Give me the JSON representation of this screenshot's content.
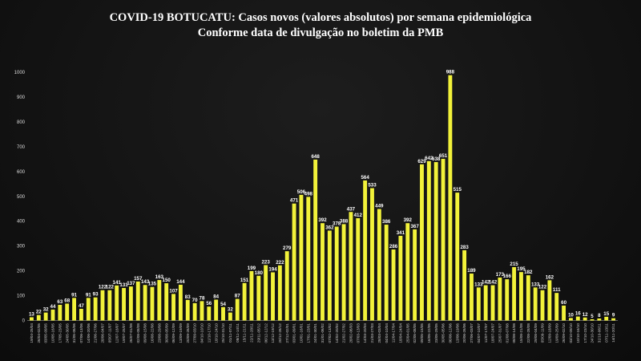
{
  "chart_data": {
    "type": "bar",
    "title": "COVID-19 BOTUCATU: Casos novos (valores absolutos) por semana epidemiológica",
    "subtitle": "Conforme data de divulgação no boletim da PMB",
    "xlabel": "",
    "ylabel": "",
    "ylim": [
      0,
      1000
    ],
    "yticks": [
      0,
      100,
      200,
      300,
      400,
      500,
      600,
      700,
      800,
      900,
      1000
    ],
    "grid": false,
    "legend": "none",
    "bar_color": "#f2f23a",
    "categories": [
      "19/04-25/04",
      "26/04-02/05",
      "03/05-09/05",
      "10/05-16/05",
      "17/05-23/05",
      "24/05-30/05",
      "31/05-06/06",
      "07/06-13/06",
      "14/06-20/06",
      "21/06-27/06",
      "28/06-04/07",
      "05/07-11/07",
      "12/07-18/07",
      "19/07-25/07",
      "26/07-01/08",
      "02/08-08/08",
      "09/08-15/08",
      "16/08-22/08",
      "23/08-29/08",
      "30/08-05/09",
      "06/09-12/09",
      "13/09-19/09",
      "20/09-26/09",
      "27/09-03/10",
      "04/10-10/10",
      "11/10-17/10",
      "18/10-24/10",
      "25/10-31/10",
      "01/11-07/11",
      "08/11-14/11",
      "15/11-21/11",
      "22/11-28/11",
      "29/11-05/12",
      "06/12-12/12",
      "13/12-19/12",
      "20/12-26/12",
      "27/12-02/01",
      "03/01-09/01",
      "10/01-16/01",
      "17/01-23/01",
      "24/01-30/01",
      "31/01-06/02",
      "07/02-13/02",
      "14/02-20/02",
      "21/02-27/02",
      "28/02-06/03",
      "07/03-13/03",
      "14/03-20/03",
      "21/03-27/03",
      "28/03-03/04",
      "04/04-10/04",
      "11/04-17/04",
      "18/04-24/04",
      "25/04-01/05",
      "02/05-08/05",
      "09/05-15/05",
      "16/05-22/05",
      "23/05-29/05",
      "30/05-05/06",
      "06/06-12/06",
      "13/06-19/06",
      "20/06-26/06",
      "27/06-03/07",
      "04/07-10/07",
      "11/07-17/07",
      "18/07-24/07",
      "25/07-31/07",
      "01/08-07/08",
      "08/08-14/08",
      "15/08-21/08",
      "22/08-28/08",
      "29/08-04/09",
      "05/09-11/09",
      "12/09-18/09",
      "19/09-25/09",
      "26/09-02/10",
      "03/10-09/10",
      "10/10-16/10",
      "17/10-23/10",
      "24/10-30/10",
      "31/10-06/11",
      "07/11-13/11",
      "14/11-20/11"
    ],
    "values": [
      13,
      22,
      32,
      44,
      63,
      68,
      91,
      47,
      91,
      93,
      122,
      122,
      141,
      131,
      137,
      157,
      143,
      135,
      163,
      150,
      107,
      144,
      83,
      70,
      78,
      56,
      84,
      54,
      32,
      87,
      151,
      199,
      180,
      223,
      194,
      222,
      279,
      471,
      506,
      498,
      648,
      392,
      362,
      378,
      388,
      437,
      412,
      564,
      533,
      449,
      386,
      286,
      341,
      392,
      367,
      629,
      642,
      638,
      651,
      988,
      515,
      283,
      189,
      133,
      142,
      142,
      173,
      166,
      215,
      195,
      182,
      133,
      122,
      162,
      111,
      60,
      10,
      16,
      12,
      5,
      8,
      15,
      9
    ]
  }
}
